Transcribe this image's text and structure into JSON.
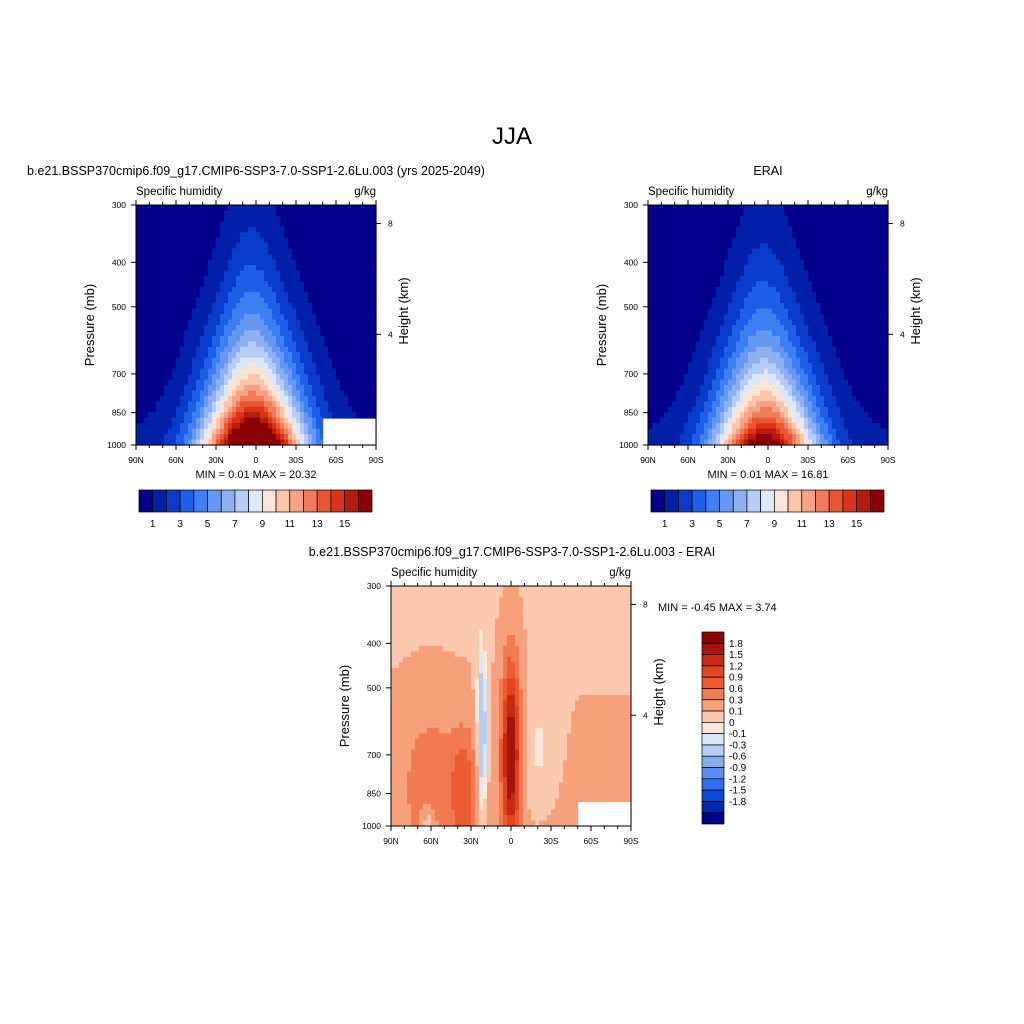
{
  "figure_title": "JJA",
  "colors": {
    "seq": [
      "#00008b",
      "#0020a8",
      "#0a3ccc",
      "#1f5ee6",
      "#3e7ef3",
      "#6598f2",
      "#8db1f0",
      "#b5ccf4",
      "#dde8fa",
      "#fde5d4",
      "#fbc5ab",
      "#f6a283",
      "#f07c5a",
      "#e85733",
      "#d93417",
      "#b81a0c",
      "#8b0000"
    ],
    "div": [
      "#00008b",
      "#0028b0",
      "#0a47d8",
      "#2f6cf0",
      "#5a8ef2",
      "#86acf0",
      "#b3cbf5",
      "#dae6fa",
      "#fde7d6",
      "#fbc9ad",
      "#f6a07c",
      "#f27a52",
      "#ec5a32",
      "#e04420",
      "#c62b10",
      "#a3160a",
      "#8b0000"
    ],
    "empty": "#ffffff"
  },
  "chart_data": [
    {
      "type": "heatmap",
      "subtitle": "b.e21.BSSP370cmip6.f09_g17.CMIP6-SSP3-7.0-SSP1-2.6Lu.003 (yrs 2025-2049)",
      "left_label": "Specific humidity",
      "right_label": "g/kg",
      "ylabel": "Pressure (mb)",
      "y2label": "Height (km)",
      "x_ticks": [
        "90N",
        "60N",
        "30N",
        "0",
        "30S",
        "60S",
        "90S"
      ],
      "y_ticks": [
        "300",
        "400",
        "500",
        "700",
        "850",
        "1000"
      ],
      "y2_ticks": [
        "8",
        "4"
      ],
      "stats": "MIN =   0.01  MAX =  20.32",
      "colorbar_labels": [
        "1",
        "3",
        "5",
        "7",
        "9",
        "11",
        "13",
        "15"
      ],
      "x_range": [
        90,
        -90
      ],
      "y_range_mb": [
        1000,
        300
      ],
      "peak_lat": 0,
      "peak_value": 20.32
    },
    {
      "type": "heatmap",
      "subtitle": "ERAI",
      "left_label": "Specific humidity",
      "right_label": "g/kg",
      "ylabel": "Pressure (mb)",
      "y2label": "Height (km)",
      "x_ticks": [
        "90N",
        "60N",
        "30N",
        "0",
        "30S",
        "60S",
        "90S"
      ],
      "y_ticks": [
        "300",
        "400",
        "500",
        "700",
        "850",
        "1000"
      ],
      "y2_ticks": [
        "8",
        "4"
      ],
      "stats": "MIN =   0.01  MAX =  16.81",
      "colorbar_labels": [
        "1",
        "3",
        "5",
        "7",
        "9",
        "11",
        "13",
        "15"
      ],
      "x_range": [
        90,
        -90
      ],
      "y_range_mb": [
        1000,
        300
      ],
      "peak_lat": 0,
      "peak_value": 16.81
    },
    {
      "type": "heatmap",
      "subtitle": "b.e21.BSSP370cmip6.f09_g17.CMIP6-SSP3-7.0-SSP1-2.6Lu.003 - ERAI",
      "left_label": "Specific humidity",
      "right_label": "g/kg",
      "ylabel": "Pressure (mb)",
      "y2label": "Height (km)",
      "x_ticks": [
        "90N",
        "60N",
        "30N",
        "0",
        "30S",
        "60S",
        "90S"
      ],
      "y_ticks": [
        "300",
        "400",
        "500",
        "700",
        "850",
        "1000"
      ],
      "y2_ticks": [
        "8",
        "4"
      ],
      "stats": "MIN =  -0.45  MAX =   3.74",
      "colorbar_labels": [
        "1.8",
        "1.5",
        "1.2",
        "0.9",
        "0.6",
        "0.3",
        "0.1",
        "0",
        "-0.1",
        "-0.3",
        "-0.6",
        "-0.9",
        "-1.2",
        "-1.5",
        "-1.8"
      ],
      "x_range": [
        90,
        -90
      ],
      "y_range_mb": [
        1000,
        300
      ]
    }
  ]
}
